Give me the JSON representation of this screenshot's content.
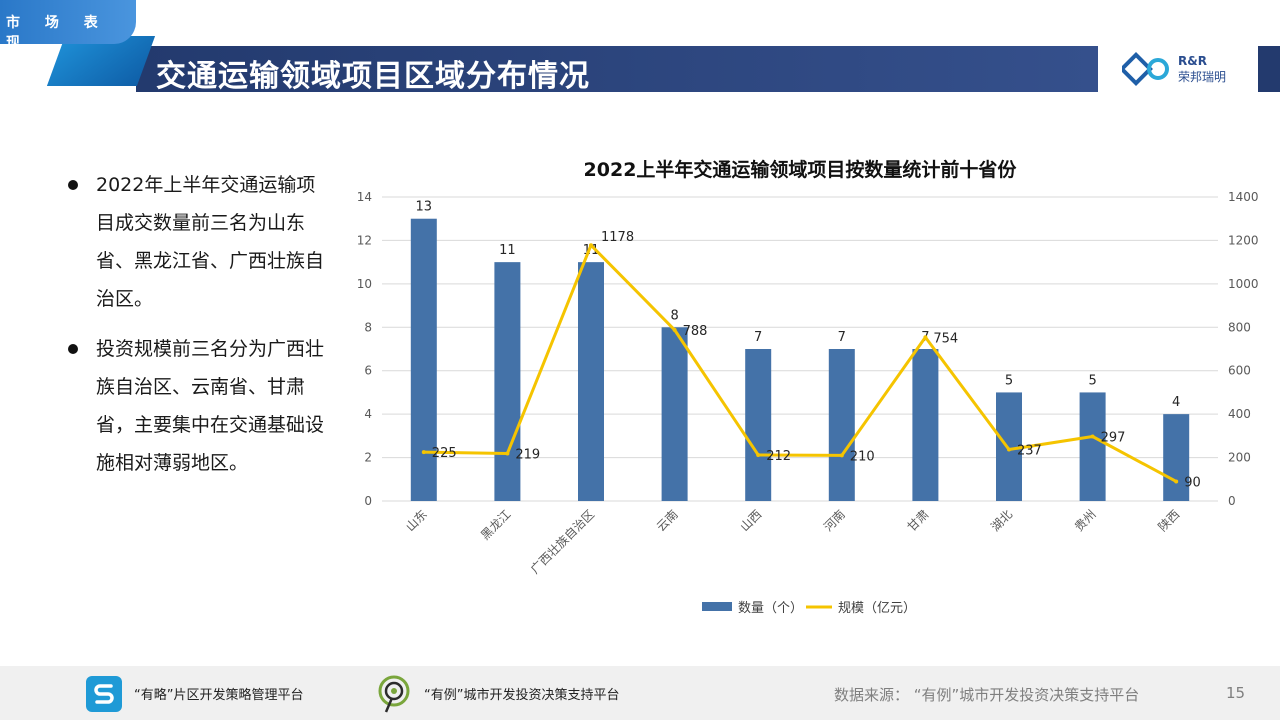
{
  "header": {
    "section_tag": "市 场 表 现",
    "title": "交通运输领域项目区域分布情况",
    "brand_line1": "R&R",
    "brand_line2": "荣邦瑞明"
  },
  "bullets": [
    "2022年上半年交通运输项目成交数量前三名为山东省、黑龙江省、广西壮族自治区。",
    "投资规模前三名分为广西壮族自治区、云南省、甘肃省，主要集中在交通基础设施相对薄弱地区。"
  ],
  "chart_data": {
    "type": "bar",
    "title": "2022上半年交通运输领域项目按数量统计前十省份",
    "categories": [
      "山东",
      "黑龙江",
      "广西壮族自治区",
      "云南",
      "山西",
      "河南",
      "甘肃",
      "湖北",
      "贵州",
      "陕西"
    ],
    "series": [
      {
        "name": "数量（个）",
        "type": "bar",
        "axis": "left",
        "values": [
          13,
          11,
          11,
          8,
          7,
          7,
          7,
          5,
          5,
          4
        ]
      },
      {
        "name": "规模（亿元）",
        "type": "line",
        "axis": "right",
        "values": [
          225,
          219,
          1178,
          788,
          212,
          210,
          754,
          237,
          297,
          90
        ]
      }
    ],
    "ylim": [
      0,
      14
    ],
    "y_ticks": [
      0,
      2,
      4,
      6,
      8,
      10,
      12,
      14
    ],
    "y2lim": [
      0,
      1400
    ],
    "y2_ticks": [
      0,
      200,
      400,
      600,
      800,
      1000,
      1200,
      1400
    ],
    "grid": true,
    "legend": "bottom",
    "colors": {
      "bar": "#4472a8",
      "line": "#f5c400"
    }
  },
  "footer": {
    "platform1": "“有略”片区开发策略管理平台",
    "platform2": "“有例”城市开发投资决策支持平台",
    "source": "数据来源：  “有例”城市开发投资决策支持平台",
    "page": "15"
  },
  "colors": {
    "title_bg": "#233a6e",
    "accent": "#2a78c8"
  }
}
